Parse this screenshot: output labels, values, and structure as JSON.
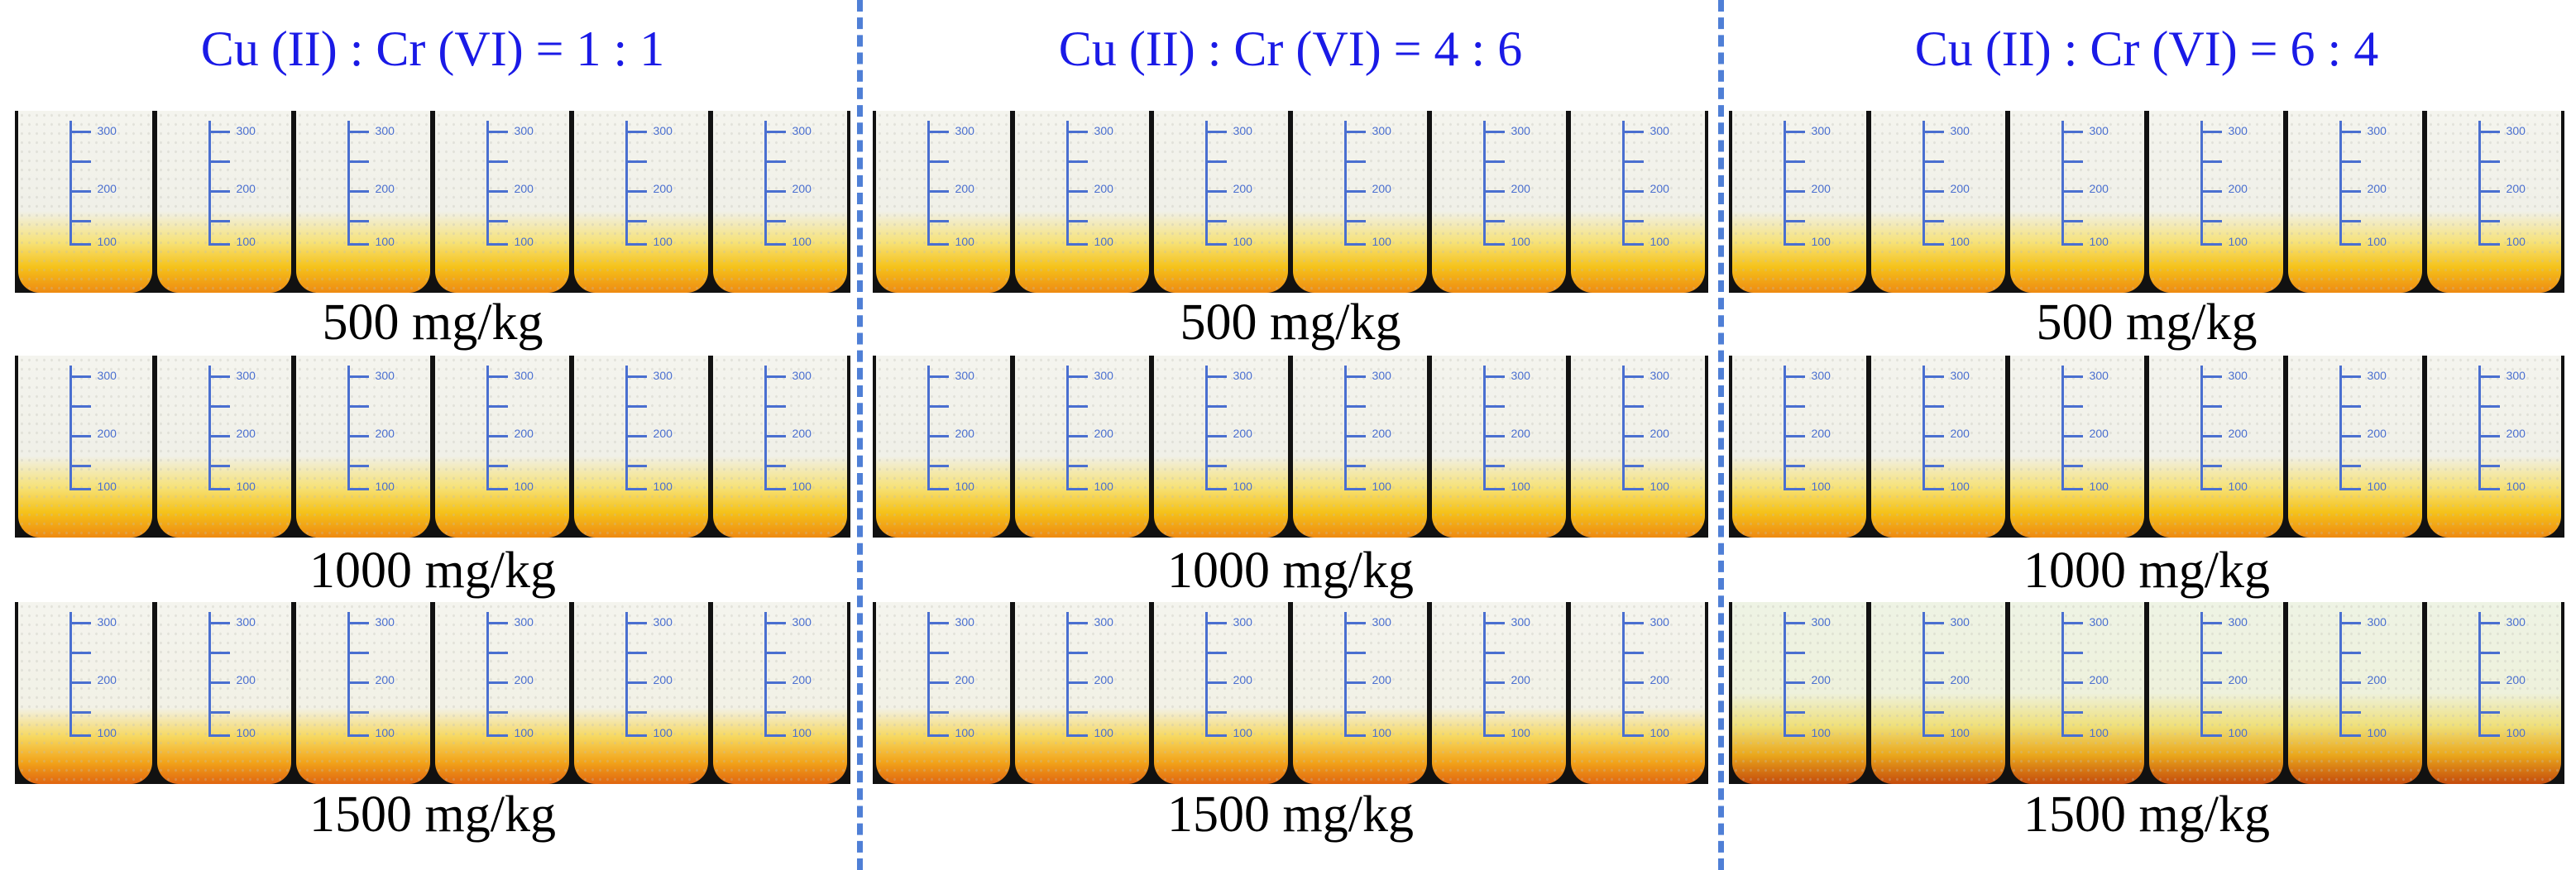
{
  "panels": [
    {
      "title": "Cu (II) : Cr (VI) = 1 : 1",
      "rows": [
        {
          "label": "500 mg/kg",
          "scale_labels": [
            "300",
            "200",
            "100"
          ]
        },
        {
          "label": "1000 mg/kg",
          "scale_labels": [
            "300",
            "200",
            "100"
          ]
        },
        {
          "label": "1500 mg/kg",
          "scale_labels": [
            "300",
            "200",
            "100"
          ]
        }
      ]
    },
    {
      "title": "Cu (II) : Cr (VI) = 4 : 6",
      "rows": [
        {
          "label": "500 mg/kg",
          "scale_labels": [
            "300",
            "200",
            "100"
          ]
        },
        {
          "label": "1000 mg/kg",
          "scale_labels": [
            "300",
            "200",
            "100"
          ]
        },
        {
          "label": "1500 mg/kg",
          "scale_labels": [
            "300",
            "200",
            "100"
          ]
        }
      ]
    },
    {
      "title": "Cu (II) : Cr (VI) = 6 : 4",
      "rows": [
        {
          "label": "500 mg/kg",
          "scale_labels": [
            "300",
            "200",
            "100"
          ]
        },
        {
          "label": "1000 mg/kg",
          "scale_labels": [
            "300",
            "200",
            "100"
          ]
        },
        {
          "label": "1500 mg/kg",
          "scale_labels": [
            "300",
            "200",
            "100"
          ]
        }
      ]
    }
  ],
  "colors": {
    "title": "#1a1ae6",
    "divider": "#4f7fd6",
    "beaker_scale": "#4a6fd0"
  }
}
